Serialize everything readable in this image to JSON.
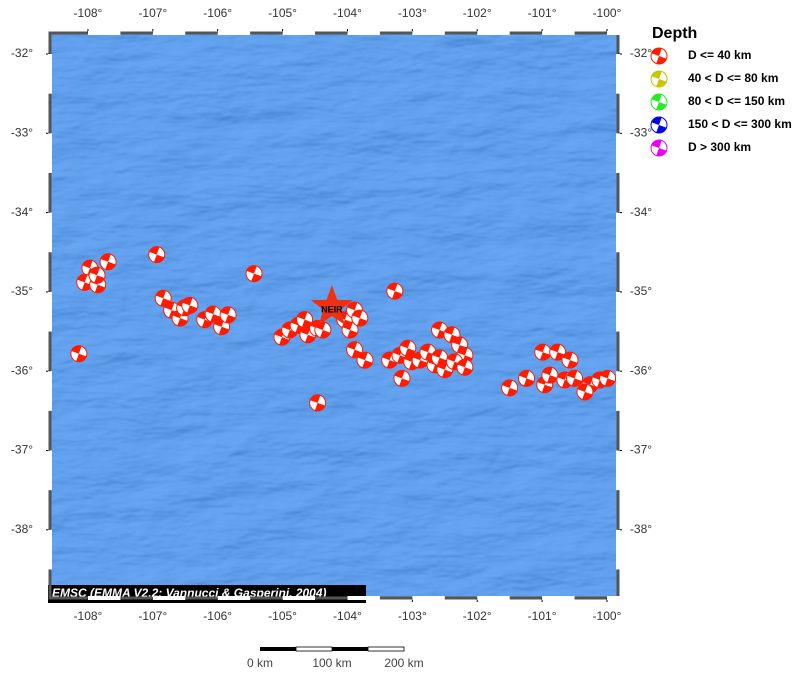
{
  "map": {
    "xlim": [
      -108.585,
      -99.83
    ],
    "ylim": [
      -38.86,
      -31.735
    ],
    "lon_ticks": [
      {
        "value": -108,
        "label": "-108°"
      },
      {
        "value": -107,
        "label": "-107°"
      },
      {
        "value": -106,
        "label": "-106°"
      },
      {
        "value": -105,
        "label": "-105°"
      },
      {
        "value": -104,
        "label": "-104°"
      },
      {
        "value": -103,
        "label": "-103°"
      },
      {
        "value": -102,
        "label": "-102°"
      },
      {
        "value": -101,
        "label": "-101°"
      },
      {
        "value": -100,
        "label": "-100°"
      }
    ],
    "lat_ticks": [
      {
        "value": -32,
        "label": "-32°"
      },
      {
        "value": -33,
        "label": "-33°"
      },
      {
        "value": -34,
        "label": "-34°"
      },
      {
        "value": -35,
        "label": "-35°"
      },
      {
        "value": -36,
        "label": "-36°"
      },
      {
        "value": -37,
        "label": "-37°"
      },
      {
        "value": -38,
        "label": "-38°"
      }
    ],
    "legend": {
      "title": "Depth",
      "items": [
        {
          "label": "D <= 40 km",
          "color": "#ff1a00"
        },
        {
          "label": "40 < D <= 80 km",
          "color": "#c8c800"
        },
        {
          "label": "80 < D <= 150 km",
          "color": "#22ee22"
        },
        {
          "label": "150 < D <= 300 km",
          "color": "#0000ee"
        },
        {
          "label": "D > 300 km",
          "color": "#ee00ee"
        }
      ]
    },
    "station": {
      "label": "NEIR",
      "lon": -104.24,
      "lat": -35.19
    },
    "credit": "EMSC (EMMA V2.2; Vannucci & Gasperini, 2004)",
    "scale": {
      "labels": [
        "0 km",
        "100 km",
        "200 km"
      ]
    },
    "events": [
      {
        "lon": -107.97,
        "lat": -34.7
      },
      {
        "lon": -108.05,
        "lat": -34.88
      },
      {
        "lon": -107.85,
        "lat": -34.91
      },
      {
        "lon": -107.69,
        "lat": -34.62
      },
      {
        "lon": -107.86,
        "lat": -34.79
      },
      {
        "lon": -106.94,
        "lat": -34.53
      },
      {
        "lon": -106.84,
        "lat": -35.08
      },
      {
        "lon": -106.71,
        "lat": -35.23
      },
      {
        "lon": -106.58,
        "lat": -35.33
      },
      {
        "lon": -106.51,
        "lat": -35.2
      },
      {
        "lon": -106.43,
        "lat": -35.17
      },
      {
        "lon": -106.2,
        "lat": -35.35
      },
      {
        "lon": -106.07,
        "lat": -35.28
      },
      {
        "lon": -105.94,
        "lat": -35.44
      },
      {
        "lon": -105.84,
        "lat": -35.29
      },
      {
        "lon": -105.44,
        "lat": -34.77
      },
      {
        "lon": -105.01,
        "lat": -35.57
      },
      {
        "lon": -104.89,
        "lat": -35.48
      },
      {
        "lon": -104.76,
        "lat": -35.42
      },
      {
        "lon": -104.66,
        "lat": -35.35
      },
      {
        "lon": -104.61,
        "lat": -35.54
      },
      {
        "lon": -104.46,
        "lat": -35.46
      },
      {
        "lon": -104.38,
        "lat": -35.48
      },
      {
        "lon": -104.04,
        "lat": -35.35
      },
      {
        "lon": -103.96,
        "lat": -35.48
      },
      {
        "lon": -103.89,
        "lat": -35.23
      },
      {
        "lon": -103.81,
        "lat": -35.33
      },
      {
        "lon": -103.27,
        "lat": -34.99
      },
      {
        "lon": -108.14,
        "lat": -35.78
      },
      {
        "lon": -104.46,
        "lat": -36.4
      },
      {
        "lon": -103.89,
        "lat": -35.73
      },
      {
        "lon": -103.73,
        "lat": -35.86
      },
      {
        "lon": -103.35,
        "lat": -35.86
      },
      {
        "lon": -103.19,
        "lat": -35.8
      },
      {
        "lon": -103.07,
        "lat": -35.71
      },
      {
        "lon": -103.16,
        "lat": -36.09
      },
      {
        "lon": -103.01,
        "lat": -35.88
      },
      {
        "lon": -102.88,
        "lat": -35.86
      },
      {
        "lon": -102.76,
        "lat": -35.76
      },
      {
        "lon": -102.65,
        "lat": -35.92
      },
      {
        "lon": -102.58,
        "lat": -35.83
      },
      {
        "lon": -102.5,
        "lat": -35.98
      },
      {
        "lon": -102.58,
        "lat": -35.48
      },
      {
        "lon": -102.39,
        "lat": -35.54
      },
      {
        "lon": -102.27,
        "lat": -35.67
      },
      {
        "lon": -102.19,
        "lat": -35.8
      },
      {
        "lon": -102.35,
        "lat": -35.88
      },
      {
        "lon": -102.19,
        "lat": -35.95
      },
      {
        "lon": -101.5,
        "lat": -36.21
      },
      {
        "lon": -101.24,
        "lat": -36.09
      },
      {
        "lon": -100.99,
        "lat": -35.76
      },
      {
        "lon": -100.76,
        "lat": -35.76
      },
      {
        "lon": -100.96,
        "lat": -36.17
      },
      {
        "lon": -100.88,
        "lat": -36.05
      },
      {
        "lon": -100.57,
        "lat": -35.86
      },
      {
        "lon": -100.65,
        "lat": -36.11
      },
      {
        "lon": -100.5,
        "lat": -36.09
      },
      {
        "lon": -100.26,
        "lat": -36.17
      },
      {
        "lon": -100.11,
        "lat": -36.11
      },
      {
        "lon": -99.99,
        "lat": -36.09
      },
      {
        "lon": -100.34,
        "lat": -36.26
      }
    ]
  }
}
